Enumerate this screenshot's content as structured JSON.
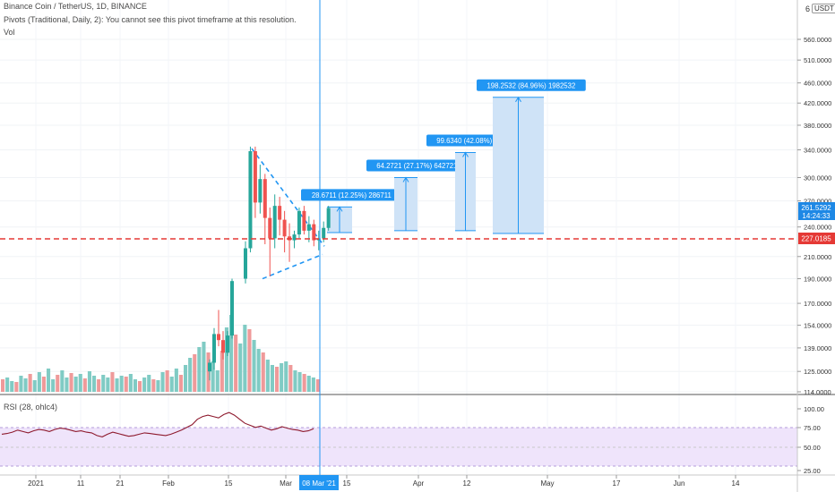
{
  "header": {
    "title": "Binance Coin / TetherUS, 1D, BINANCE",
    "pivots": "Pivots (Traditional, Daily, 2): You cannot see this pivot timeframe at this resolution.",
    "vol": "Vol",
    "rsi": "RSI (28, ohlc4)",
    "scale_number": "6",
    "currency": "USDT"
  },
  "colors": {
    "up": "#26a69a",
    "down": "#ef5350",
    "vol_up": "#80cbc4",
    "vol_down": "#ef9a9a",
    "support": "#e53935",
    "projection_fill": "#cfe3f7",
    "projection_line": "#2196f3",
    "label_bg": "#2196f3",
    "rsi_line": "#8e1a2e",
    "rsi_band": "#efe4fb",
    "price_label": "#1e88e5",
    "support_label": "#e53935"
  },
  "chart_data": {
    "type": "candlestick",
    "y_axis": {
      "scale": "log",
      "ticks": [
        "560.0000",
        "510.0000",
        "460.0000",
        "420.0000",
        "380.0000",
        "340.0000",
        "300.0000",
        "270.0000",
        "240.0000",
        "210.0000",
        "190.0000",
        "170.0000",
        "154.0000",
        "139.0000",
        "125.0000",
        "114.0000"
      ]
    },
    "x_axis": {
      "ticks": [
        "2021",
        "11",
        "21",
        "Feb",
        "15",
        "Mar",
        "15",
        "Apr",
        "12",
        "May",
        "17",
        "Jun",
        "14"
      ],
      "highlight": "08 Mar '21"
    },
    "current_price": "261.5292",
    "countdown": "14:24:33",
    "support_level": "227.0185",
    "candles": [
      {
        "o": 190,
        "h": 225,
        "l": 186,
        "c": 218
      },
      {
        "o": 218,
        "h": 345,
        "l": 214,
        "c": 338
      },
      {
        "o": 338,
        "h": 345,
        "l": 250,
        "c": 268
      },
      {
        "o": 268,
        "h": 318,
        "l": 255,
        "c": 298
      },
      {
        "o": 298,
        "h": 305,
        "l": 222,
        "c": 250
      },
      {
        "o": 250,
        "h": 262,
        "l": 192,
        "c": 228
      },
      {
        "o": 228,
        "h": 278,
        "l": 218,
        "c": 264
      },
      {
        "o": 264,
        "h": 275,
        "l": 231,
        "c": 248
      },
      {
        "o": 248,
        "h": 258,
        "l": 214,
        "c": 230
      },
      {
        "o": 230,
        "h": 244,
        "l": 205,
        "c": 226
      },
      {
        "o": 226,
        "h": 236,
        "l": 218,
        "c": 232
      },
      {
        "o": 232,
        "h": 262,
        "l": 228,
        "c": 258
      },
      {
        "o": 258,
        "h": 264,
        "l": 232,
        "c": 236
      },
      {
        "o": 236,
        "h": 252,
        "l": 224,
        "c": 243
      },
      {
        "o": 243,
        "h": 248,
        "l": 220,
        "c": 226
      },
      {
        "o": 226,
        "h": 236,
        "l": 216,
        "c": 228
      },
      {
        "o": 228,
        "h": 246,
        "l": 224,
        "c": 239
      },
      {
        "o": 239,
        "h": 264,
        "l": 236,
        "c": 261.5
      }
    ],
    "rsi": {
      "ticks": [
        "100.00",
        "75.00",
        "50.00",
        "25.00"
      ],
      "band": [
        30,
        70
      ]
    },
    "projections": [
      {
        "label": "28.6711 (12.25%) 286711",
        "base": 234,
        "top": 262.7
      },
      {
        "label": "64.2721 (27.17%) 642721",
        "base": 236,
        "top": 300
      },
      {
        "label": "99.6340 (42.08%) 996340",
        "base": 236,
        "top": 336
      },
      {
        "label": "198.2532 (84.96%) 1982532",
        "base": 233,
        "top": 431
      }
    ]
  }
}
